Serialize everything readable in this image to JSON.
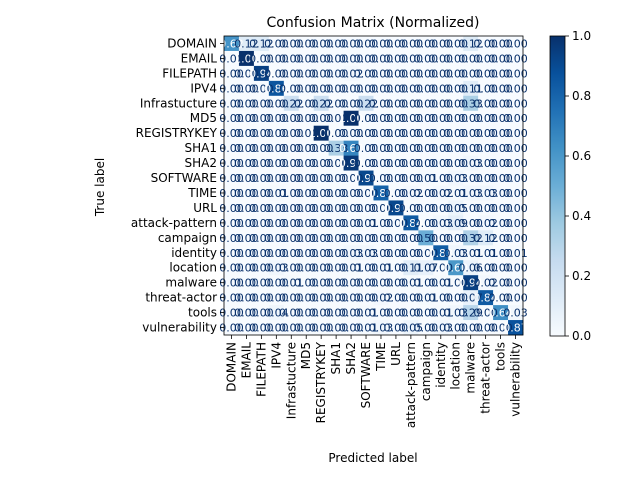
{
  "chart_data": {
    "type": "heatmap",
    "title": "Confusion Matrix (Normalized)",
    "xlabel": "Predicted label",
    "ylabel": "True label",
    "labels": [
      "DOMAIN",
      "EMAIL",
      "FILEPATH",
      "IPV4",
      "Infrastucture",
      "MD5",
      "REGISTRYKEY",
      "SHA1",
      "SHA2",
      "SOFTWARE",
      "TIME",
      "URL",
      "attack-pattern",
      "campaign",
      "identity",
      "location",
      "malware",
      "threat-actor",
      "tools",
      "vulnerability"
    ],
    "matrix": [
      [
        0.62,
        0.12,
        0.12,
        0.0,
        0.0,
        0.0,
        0.0,
        0.0,
        0.0,
        0.0,
        0.0,
        0.0,
        0.0,
        0.0,
        0.0,
        0.0,
        0.12,
        0.0,
        0.0,
        0.0
      ],
      [
        0.0,
        1.0,
        0.0,
        0.0,
        0.0,
        0.0,
        0.0,
        0.0,
        0.0,
        0.0,
        0.0,
        0.0,
        0.0,
        0.0,
        0.0,
        0.0,
        0.0,
        0.0,
        0.0,
        0.0
      ],
      [
        0.0,
        0.0,
        0.94,
        0.0,
        0.0,
        0.0,
        0.0,
        0.0,
        0.02,
        0.0,
        0.0,
        0.0,
        0.0,
        0.0,
        0.0,
        0.0,
        0.0,
        0.0,
        0.0,
        0.0
      ],
      [
        0.0,
        0.0,
        0.0,
        0.86,
        0.0,
        0.0,
        0.0,
        0.0,
        0.0,
        0.0,
        0.0,
        0.0,
        0.0,
        0.0,
        0.0,
        0.0,
        0.11,
        0.0,
        0.0,
        0.0
      ],
      [
        0.0,
        0.0,
        0.0,
        0.0,
        0.22,
        0.0,
        0.22,
        0.0,
        0.0,
        0.22,
        0.0,
        0.0,
        0.0,
        0.0,
        0.0,
        0.0,
        0.33,
        0.0,
        0.0,
        0.0
      ],
      [
        0.0,
        0.0,
        0.0,
        0.0,
        0.0,
        0.0,
        0.0,
        0.0,
        1.0,
        0.0,
        0.0,
        0.0,
        0.0,
        0.0,
        0.0,
        0.0,
        0.0,
        0.0,
        0.0,
        0.0
      ],
      [
        0.0,
        0.0,
        0.0,
        0.0,
        0.0,
        0.0,
        1.0,
        0.0,
        0.0,
        0.0,
        0.0,
        0.0,
        0.0,
        0.0,
        0.0,
        0.0,
        0.0,
        0.0,
        0.0,
        0.0
      ],
      [
        0.0,
        0.0,
        0.0,
        0.0,
        0.0,
        0.0,
        0.0,
        0.33,
        0.67,
        0.0,
        0.0,
        0.0,
        0.0,
        0.0,
        0.0,
        0.0,
        0.0,
        0.0,
        0.0,
        0.0
      ],
      [
        0.0,
        0.0,
        0.0,
        0.0,
        0.0,
        0.0,
        0.0,
        0.0,
        0.97,
        0.0,
        0.0,
        0.0,
        0.0,
        0.0,
        0.0,
        0.0,
        0.03,
        0.0,
        0.0,
        0.0
      ],
      [
        0.0,
        0.0,
        0.0,
        0.0,
        0.0,
        0.0,
        0.0,
        0.0,
        0.0,
        0.91,
        0.0,
        0.0,
        0.0,
        0.01,
        0.0,
        0.03,
        0.0,
        0.0,
        0.0,
        0.0
      ],
      [
        0.0,
        0.0,
        0.0,
        0.01,
        0.0,
        0.0,
        0.0,
        0.0,
        0.0,
        0.0,
        0.81,
        0.0,
        0.02,
        0.0,
        0.02,
        0.01,
        0.03,
        0.03,
        0.0,
        0.0
      ],
      [
        0.0,
        0.0,
        0.0,
        0.0,
        0.0,
        0.0,
        0.0,
        0.0,
        0.0,
        0.0,
        0.0,
        0.91,
        0.0,
        0.0,
        0.0,
        0.05,
        0.0,
        0.0,
        0.0,
        0.0
      ],
      [
        0.0,
        0.0,
        0.0,
        0.0,
        0.0,
        0.0,
        0.0,
        0.0,
        0.0,
        0.01,
        0.0,
        0.0,
        0.84,
        0.0,
        0.03,
        0.09,
        0.0,
        0.02,
        0.0,
        0.0
      ],
      [
        0.0,
        0.0,
        0.0,
        0.0,
        0.0,
        0.0,
        0.0,
        0.0,
        0.0,
        0.0,
        0.0,
        0.0,
        0.0,
        0.5,
        0.0,
        0.0,
        0.32,
        0.12,
        0.0,
        0.0
      ],
      [
        0.0,
        0.0,
        0.0,
        0.0,
        0.0,
        0.0,
        0.0,
        0.0,
        0.03,
        0.03,
        0.0,
        0.0,
        0.0,
        0.0,
        0.83,
        0.03,
        0.01,
        0.01,
        0.0,
        0.01
      ],
      [
        0.0,
        0.0,
        0.0,
        0.03,
        0.0,
        0.0,
        0.0,
        0.0,
        0.01,
        0.0,
        0.01,
        0.0,
        0.11,
        0.07,
        0.0,
        0.6,
        0.06,
        0.0,
        0.0,
        0.0
      ],
      [
        0.0,
        0.0,
        0.0,
        0.0,
        0.01,
        0.0,
        0.0,
        0.0,
        0.0,
        0.0,
        0.0,
        0.0,
        0.01,
        0.0,
        0.01,
        0.0,
        0.94,
        0.02,
        0.0,
        0.0
      ],
      [
        0.0,
        0.0,
        0.0,
        0.0,
        0.0,
        0.0,
        0.0,
        0.0,
        0.0,
        0.0,
        0.02,
        0.0,
        0.0,
        0.01,
        0.0,
        0.0,
        0.07,
        0.84,
        0.0,
        0.0
      ],
      [
        0.0,
        0.0,
        0.0,
        0.04,
        0.0,
        0.0,
        0.0,
        0.0,
        0.0,
        0.01,
        0.0,
        0.0,
        0.0,
        0.0,
        0.01,
        0.03,
        0.29,
        0.0,
        0.64,
        0.03
      ],
      [
        0.0,
        0.0,
        0.0,
        0.0,
        0.0,
        0.0,
        0.0,
        0.0,
        0.0,
        0.01,
        0.03,
        0.0,
        0.05,
        0.0,
        0.03,
        0.0,
        0.0,
        0.0,
        0.0,
        0.87
      ]
    ],
    "value_format": "2 decimals",
    "vmin": 0.0,
    "vmax": 1.0,
    "colormap": "Blues",
    "colorbar_ticks": [
      "0.0",
      "0.2",
      "0.4",
      "0.6",
      "0.8",
      "1.0"
    ],
    "colors": {
      "low": "#f7fbff",
      "high": "#08306b"
    }
  }
}
